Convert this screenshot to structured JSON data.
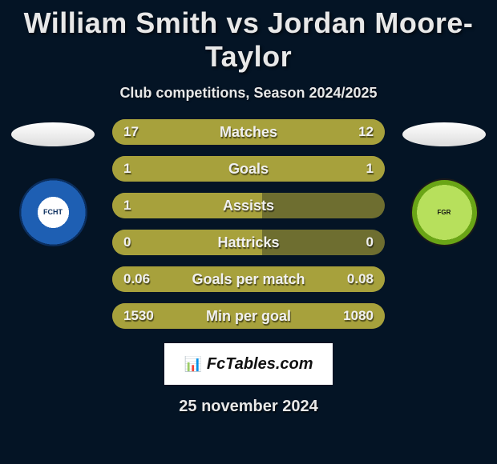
{
  "title": {
    "player1": "William Smith",
    "vs": "vs",
    "player2": "Jordan Moore-Taylor"
  },
  "subtitle": "Club competitions, Season 2024/2025",
  "date": "25 november 2024",
  "brand": {
    "icon": "📊",
    "text": "FcTables.com"
  },
  "colors": {
    "background": "#041425",
    "bar_track": "#6e6e30",
    "bar_fill": "#a7a13c",
    "text": "#e8e8e8"
  },
  "clubs": {
    "left": {
      "label": "FCHT"
    },
    "right": {
      "label": "FGR"
    }
  },
  "rows": [
    {
      "label": "Matches",
      "lval": "17",
      "rval": "12",
      "lw": 55,
      "rw": 100
    },
    {
      "label": "Goals",
      "lval": "1",
      "rval": "1",
      "lw": 55,
      "rw": 100
    },
    {
      "label": "Assists",
      "lval": "1",
      "rval": "",
      "lw": 55,
      "rw": 0
    },
    {
      "label": "Hattricks",
      "lval": "0",
      "rval": "0",
      "lw": 55,
      "rw": 0
    },
    {
      "label": "Goals per match",
      "lval": "0.06",
      "rval": "0.08",
      "lw": 55,
      "rw": 100
    },
    {
      "label": "Min per goal",
      "lval": "1530",
      "rval": "1080",
      "lw": 59,
      "rw": 100
    }
  ]
}
